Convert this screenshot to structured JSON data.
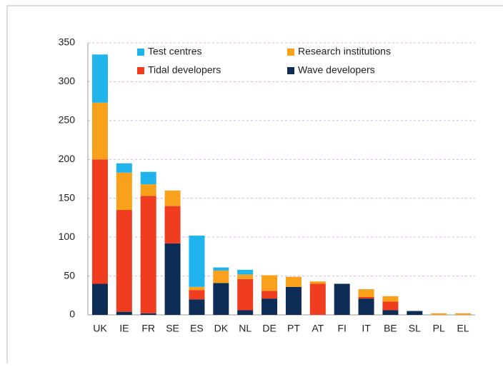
{
  "chart_data": {
    "type": "stacked_bar",
    "categories": [
      "UK",
      "IE",
      "FR",
      "SE",
      "ES",
      "DK",
      "NL",
      "DE",
      "PT",
      "AT",
      "FI",
      "IT",
      "BE",
      "SL",
      "PL",
      "EL"
    ],
    "series": [
      {
        "name": "Test centres",
        "color": "#1fb4ec",
        "values": [
          62,
          12,
          16,
          0,
          66,
          4,
          6,
          0,
          0,
          0,
          0,
          0,
          0,
          0,
          0,
          0
        ]
      },
      {
        "name": "Research institutions",
        "color": "#f9a11b",
        "values": [
          73,
          48,
          15,
          20,
          4,
          16,
          6,
          20,
          13,
          3,
          0,
          10,
          7,
          0,
          2,
          2
        ]
      },
      {
        "name": "Tidal developers",
        "color": "#f03c1f",
        "values": [
          160,
          131,
          151,
          48,
          12,
          0,
          40,
          10,
          0,
          40,
          0,
          2,
          11,
          0,
          0,
          0
        ]
      },
      {
        "name": "Wave developers",
        "color": "#0d2c56",
        "values": [
          40,
          4,
          2,
          92,
          20,
          41,
          6,
          21,
          36,
          0,
          40,
          21,
          6,
          5,
          0,
          0
        ]
      }
    ],
    "ylim": [
      0,
      350
    ],
    "yticks": [
      0,
      50,
      100,
      150,
      200,
      250,
      300,
      350
    ],
    "grid": true
  }
}
